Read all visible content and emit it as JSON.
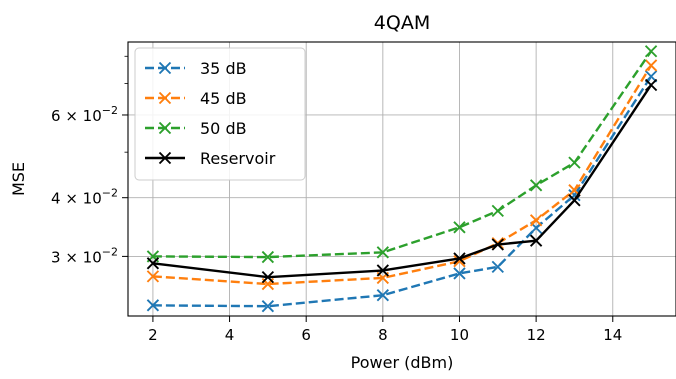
{
  "chart_data": {
    "type": "line",
    "title": "4QAM",
    "xlabel": "Power (dBm)",
    "ylabel": "MSE",
    "y_scale": "log",
    "xlim": [
      1.35,
      15.65
    ],
    "ylim": [
      0.0224,
      0.0858
    ],
    "grid": true,
    "legend_position": "upper left",
    "x_ticks": [
      2,
      4,
      6,
      8,
      10,
      12,
      14
    ],
    "x_tick_labels": [
      "2",
      "4",
      "6",
      "8",
      "10",
      "12",
      "14"
    ],
    "y_ticks": [
      0.03,
      0.04,
      0.06
    ],
    "y_tick_labels": [
      {
        "mantissa": "3 × 10",
        "exp": "−2"
      },
      {
        "mantissa": "4 × 10",
        "exp": "−2"
      },
      {
        "mantissa": "6 × 10",
        "exp": "−2"
      }
    ],
    "x": [
      2,
      5,
      8,
      10,
      11,
      12,
      13,
      15
    ],
    "series": [
      {
        "name": "35 dB",
        "color": "#1f77b4",
        "dashed": true,
        "values": [
          0.0236,
          0.0235,
          0.0248,
          0.0276,
          0.0285,
          0.0345,
          0.0405,
          0.0725
        ]
      },
      {
        "name": "45 dB",
        "color": "#ff7f0e",
        "dashed": true,
        "values": [
          0.0272,
          0.0262,
          0.027,
          0.0293,
          0.032,
          0.0358,
          0.0415,
          0.0765
        ]
      },
      {
        "name": "50 dB",
        "color": "#2ca02c",
        "dashed": true,
        "values": [
          0.03,
          0.0299,
          0.0306,
          0.0346,
          0.0375,
          0.0425,
          0.0475,
          0.082
        ]
      },
      {
        "name": "Reservoir",
        "color": "#000000",
        "dashed": false,
        "values": [
          0.029,
          0.0271,
          0.028,
          0.0297,
          0.0318,
          0.0324,
          0.0395,
          0.0695
        ]
      }
    ]
  }
}
